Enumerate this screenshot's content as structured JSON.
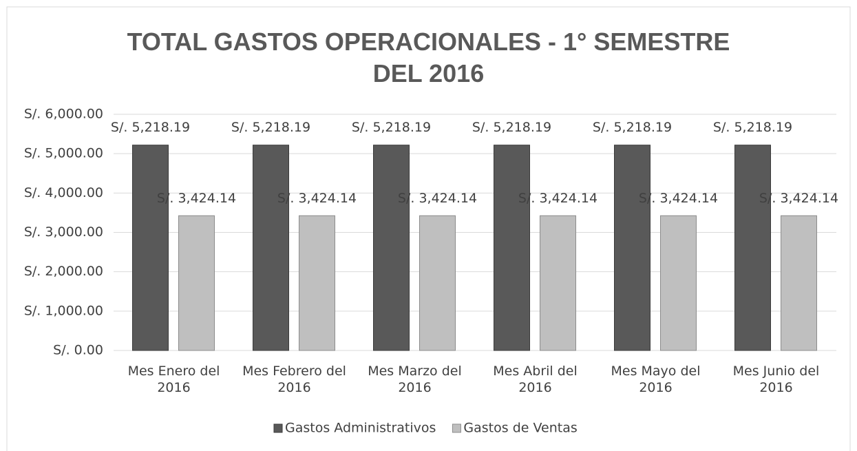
{
  "chart_data": {
    "type": "bar",
    "title": "TOTAL GASTOS OPERACIONALES - 1° SEMESTRE DEL 2016",
    "categories": [
      "Mes Enero del 2016",
      "Mes Febrero del 2016",
      "Mes Marzo del 2016",
      "Mes Abril del 2016",
      "Mes Mayo del 2016",
      "Mes Junio del 2016"
    ],
    "series": [
      {
        "name": "Gastos Administrativos",
        "color": "#595959",
        "values": [
          5218.19,
          5218.19,
          5218.19,
          5218.19,
          5218.19,
          5218.19
        ],
        "value_labels": [
          "S/. 5,218.19",
          "S/. 5,218.19",
          "S/. 5,218.19",
          "S/. 5,218.19",
          "S/. 5,218.19",
          "S/. 5,218.19"
        ]
      },
      {
        "name": "Gastos de Ventas",
        "color": "#bfbfbf",
        "values": [
          3424.14,
          3424.14,
          3424.14,
          3424.14,
          3424.14,
          3424.14
        ],
        "value_labels": [
          "S/. 3,424.14",
          "S/. 3,424.14",
          "S/. 3,424.14",
          "S/. 3,424.14",
          "S/. 3,424.14",
          "S/. 3,424.14"
        ]
      }
    ],
    "ylim": [
      0,
      6000
    ],
    "yticks": [
      {
        "value": 0,
        "label": "S/. 0.00"
      },
      {
        "value": 1000,
        "label": "S/. 1,000.00"
      },
      {
        "value": 2000,
        "label": "S/. 2,000.00"
      },
      {
        "value": 3000,
        "label": "S/. 3,000.00"
      },
      {
        "value": 4000,
        "label": "S/. 4,000.00"
      },
      {
        "value": 5000,
        "label": "S/. 5,000.00"
      },
      {
        "value": 6000,
        "label": "S/. 6,000.00"
      }
    ],
    "grid": true,
    "legend": "bottom"
  }
}
